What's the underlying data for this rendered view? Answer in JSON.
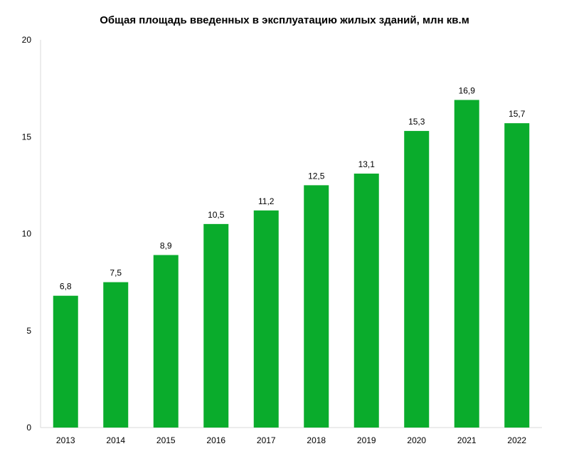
{
  "chart_data": {
    "type": "bar",
    "title": "Общая площадь введенных в эксплуатацию жилых зданий, млн кв.м",
    "categories": [
      "2013",
      "2014",
      "2015",
      "2016",
      "2017",
      "2018",
      "2019",
      "2020",
      "2021",
      "2022"
    ],
    "values": [
      6.8,
      7.5,
      8.9,
      10.5,
      11.2,
      12.5,
      13.1,
      15.3,
      16.9,
      15.7
    ],
    "value_labels": [
      "6,8",
      "7,5",
      "8,9",
      "10,5",
      "11,2",
      "12,5",
      "13,1",
      "15,3",
      "16,9",
      "15,7"
    ],
    "y_ticks": [
      "0",
      "5",
      "10",
      "15",
      "20"
    ],
    "ylim": [
      0,
      20
    ],
    "grid": false,
    "legend": "none",
    "bar_color": "#0aac2c"
  }
}
